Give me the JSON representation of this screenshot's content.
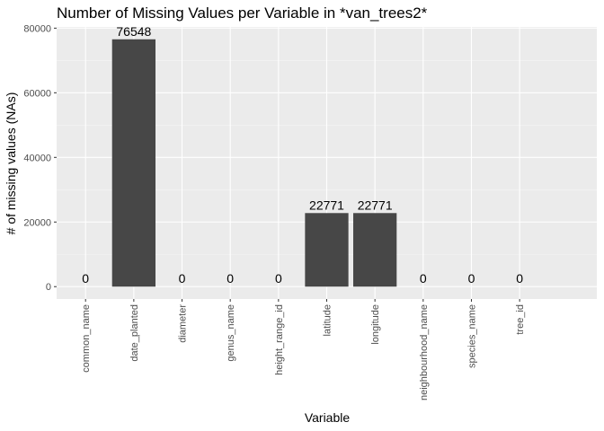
{
  "chart_data": {
    "type": "bar",
    "title": "Number of Missing Values per Variable in *van_trees2*",
    "xlabel": "Variable",
    "ylabel": "# of missing values (NAs)",
    "categories": [
      "common_name",
      "date_planted",
      "diameter",
      "genus_name",
      "height_range_id",
      "latitude",
      "longitude",
      "neighbourhood_name",
      "species_name",
      "tree_id"
    ],
    "values": [
      0,
      76548,
      0,
      0,
      0,
      22771,
      22771,
      0,
      0,
      0
    ],
    "data_labels": [
      "0",
      "76548",
      "0",
      "0",
      "0",
      "22771",
      "22771",
      "0",
      "0",
      "0"
    ],
    "y_ticks": [
      0,
      20000,
      40000,
      60000,
      80000
    ],
    "y_tick_labels": [
      "0",
      "20000",
      "40000",
      "60000",
      "80000"
    ],
    "ylim": [
      -3827.4,
      80375.4
    ],
    "grid": true,
    "legend": "none",
    "colors": {
      "bar": "#474747",
      "panel_background": "#ebebeb",
      "grid_major": "#ffffff",
      "grid_minor": "#f5f5f5"
    }
  }
}
